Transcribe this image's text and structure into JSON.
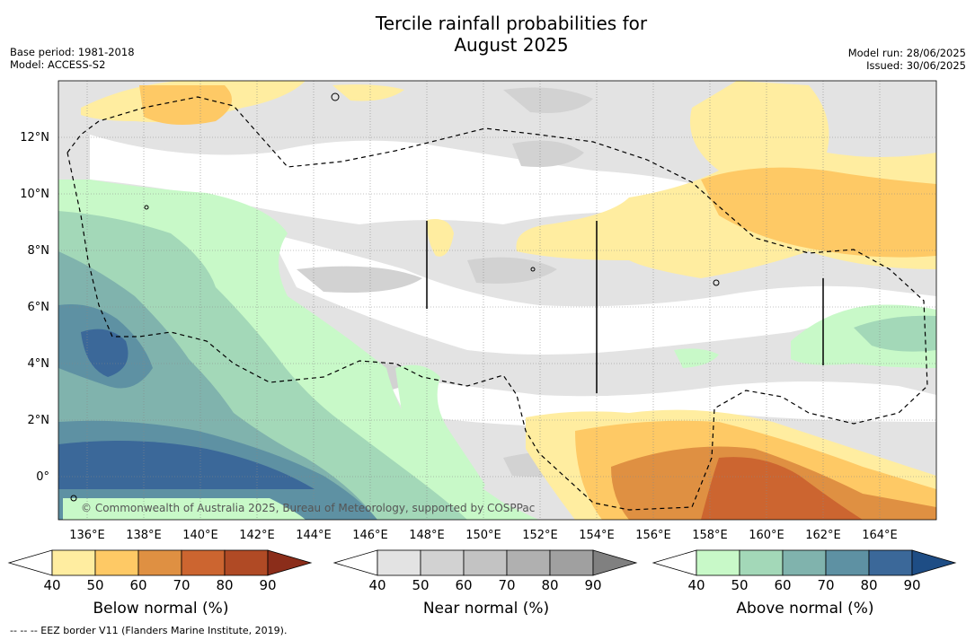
{
  "title_line1": "Tercile rainfall probabilities for",
  "title_line2": "August 2025",
  "base_period": "Base period: 1981-2018",
  "model": "Model: ACCESS-S2",
  "model_run": "Model run: 28/06/2025",
  "issued": "Issued: 30/06/2025",
  "copyright": "© Commonwealth of Australia 2025, Bureau of Meteorology, supported by COSPPac",
  "lon_labels": [
    "136°E",
    "138°E",
    "140°E",
    "142°E",
    "144°E",
    "146°E",
    "148°E",
    "150°E",
    "152°E",
    "154°E",
    "156°E",
    "158°E",
    "160°E",
    "162°E",
    "164°E"
  ],
  "lat_labels": [
    "12°N",
    "10°N",
    "8°N",
    "6°N",
    "4°N",
    "2°N",
    "0°"
  ],
  "colorbars": {
    "below": {
      "label": "Below normal (%)",
      "ticks": [
        "40",
        "50",
        "60",
        "70",
        "80",
        "90"
      ],
      "colors": [
        "#ffffff",
        "#ffeda0",
        "#fec965",
        "#df9042",
        "#cc6530",
        "#b04a25",
        "#8b2d1a"
      ]
    },
    "near": {
      "label": "Near normal (%)",
      "ticks": [
        "40",
        "50",
        "60",
        "70",
        "80",
        "90"
      ],
      "colors": [
        "#ffffff",
        "#e3e3e3",
        "#d2d2d2",
        "#c3c3c3",
        "#b0b0b0",
        "#a0a0a0",
        "#808080"
      ]
    },
    "above": {
      "label": "Above normal (%)",
      "ticks": [
        "40",
        "50",
        "60",
        "70",
        "80",
        "90"
      ],
      "colors": [
        "#ffffff",
        "#c8f9c8",
        "#a3d8b8",
        "#80b3ad",
        "#5e91a3",
        "#3b6899",
        "#1e4d85"
      ]
    }
  },
  "footer": "--  --  -- EEZ border V11 (Flanders Marine Institute, 2019)."
}
